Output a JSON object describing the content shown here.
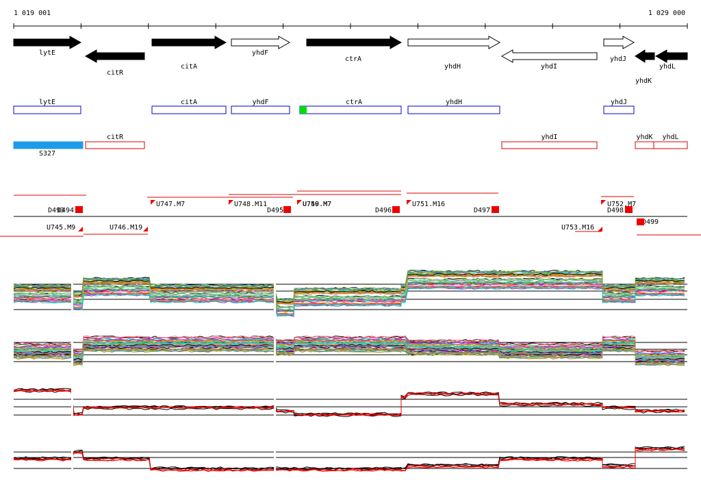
{
  "ruler": {
    "start": "1 019 001",
    "end": "1 029 000"
  },
  "genes": [
    "lytE",
    "citR",
    "citA",
    "yhdF",
    "ctrA",
    "yhdH",
    "yhdI",
    "yhdJ",
    "yhdK",
    "yhdL"
  ],
  "forward_boxes": [
    "lytE",
    "citA",
    "yhdF",
    "ctrA",
    "yhdH",
    "yhdJ"
  ],
  "reverse_boxes": [
    "S327",
    "citR",
    "yhdI",
    "yhdK",
    "yhdL"
  ],
  "features": [
    "U745.M9",
    "U746.M19",
    "U747.M7",
    "U748.M11",
    "D495",
    "U749.M7",
    "U750.M7",
    "D496",
    "U751.M16",
    "D497",
    "U752.M7",
    "D498",
    "U753.M16",
    "D499",
    "D493",
    "D494"
  ]
}
